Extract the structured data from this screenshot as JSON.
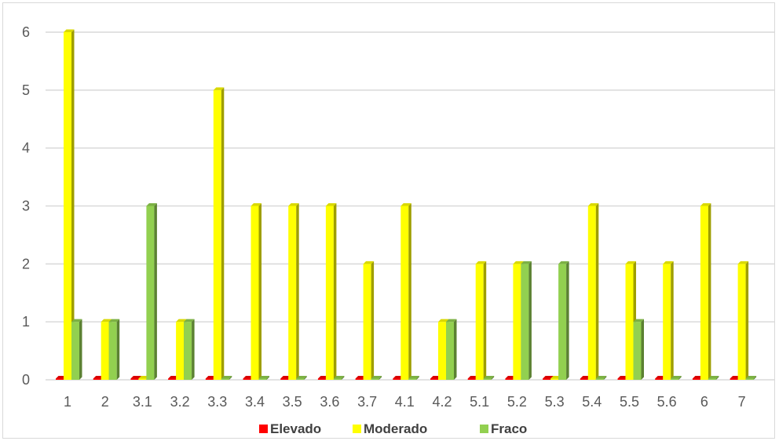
{
  "chart_data": {
    "type": "bar",
    "categories": [
      "1",
      "2",
      "3.1",
      "3.2",
      "3.3",
      "3.4",
      "3.5",
      "3.6",
      "3.7",
      "4.1",
      "4.2",
      "5.1",
      "5.2",
      "5.3",
      "5.4",
      "5.5",
      "5.6",
      "6",
      "7"
    ],
    "series": [
      {
        "name": "Elevado",
        "color": "#ff0000",
        "values": [
          0,
          0,
          0,
          0,
          0,
          0,
          0,
          0,
          0,
          0,
          0,
          0,
          0,
          0,
          0,
          0,
          0,
          0,
          0
        ]
      },
      {
        "name": "Moderado",
        "color": "#ffff00",
        "values": [
          6,
          1,
          0,
          1,
          5,
          3,
          3,
          3,
          2,
          3,
          1,
          2,
          2,
          0,
          3,
          2,
          2,
          3,
          2
        ]
      },
      {
        "name": "Fraco",
        "color": "#92d050",
        "values": [
          1,
          1,
          3,
          1,
          0,
          0,
          0,
          0,
          0,
          0,
          1,
          0,
          2,
          2,
          0,
          1,
          0,
          0,
          0
        ]
      }
    ],
    "ylim": [
      0,
      6
    ],
    "yticks": [
      "0",
      "1",
      "2",
      "3",
      "4",
      "5",
      "6"
    ],
    "grid": true,
    "legend": "bottom",
    "style": "3d-clustered"
  }
}
